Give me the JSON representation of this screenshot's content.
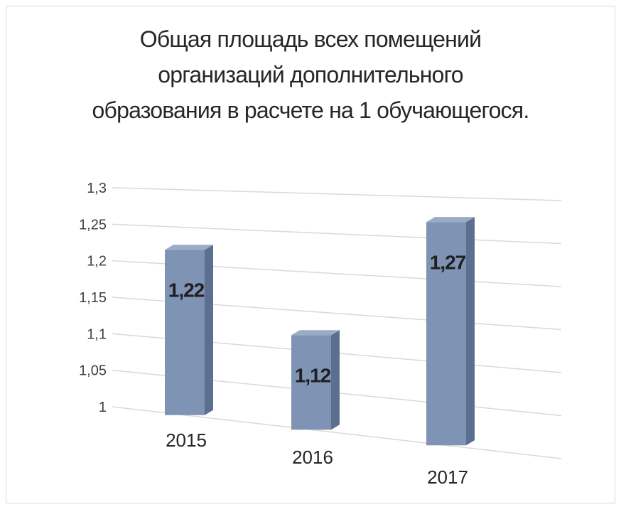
{
  "chart_data": {
    "type": "bar",
    "title_lines": [
      "Общая площадь всех помещений",
      "организаций дополнительного",
      "образования в расчете на 1 обучающегося."
    ],
    "categories": [
      "2015",
      "2016",
      "2017"
    ],
    "values": [
      1.22,
      1.12,
      1.27
    ],
    "data_labels": [
      "1,22",
      "1,12",
      "1,27"
    ],
    "ylim": [
      1,
      1.3
    ],
    "y_ticks": [
      "1",
      "1,05",
      "1,1",
      "1,15",
      "1,2",
      "1,25",
      "1,3"
    ],
    "grid": true,
    "legend": "none",
    "style": "3d-column",
    "bar_color": "#7f93b4"
  }
}
